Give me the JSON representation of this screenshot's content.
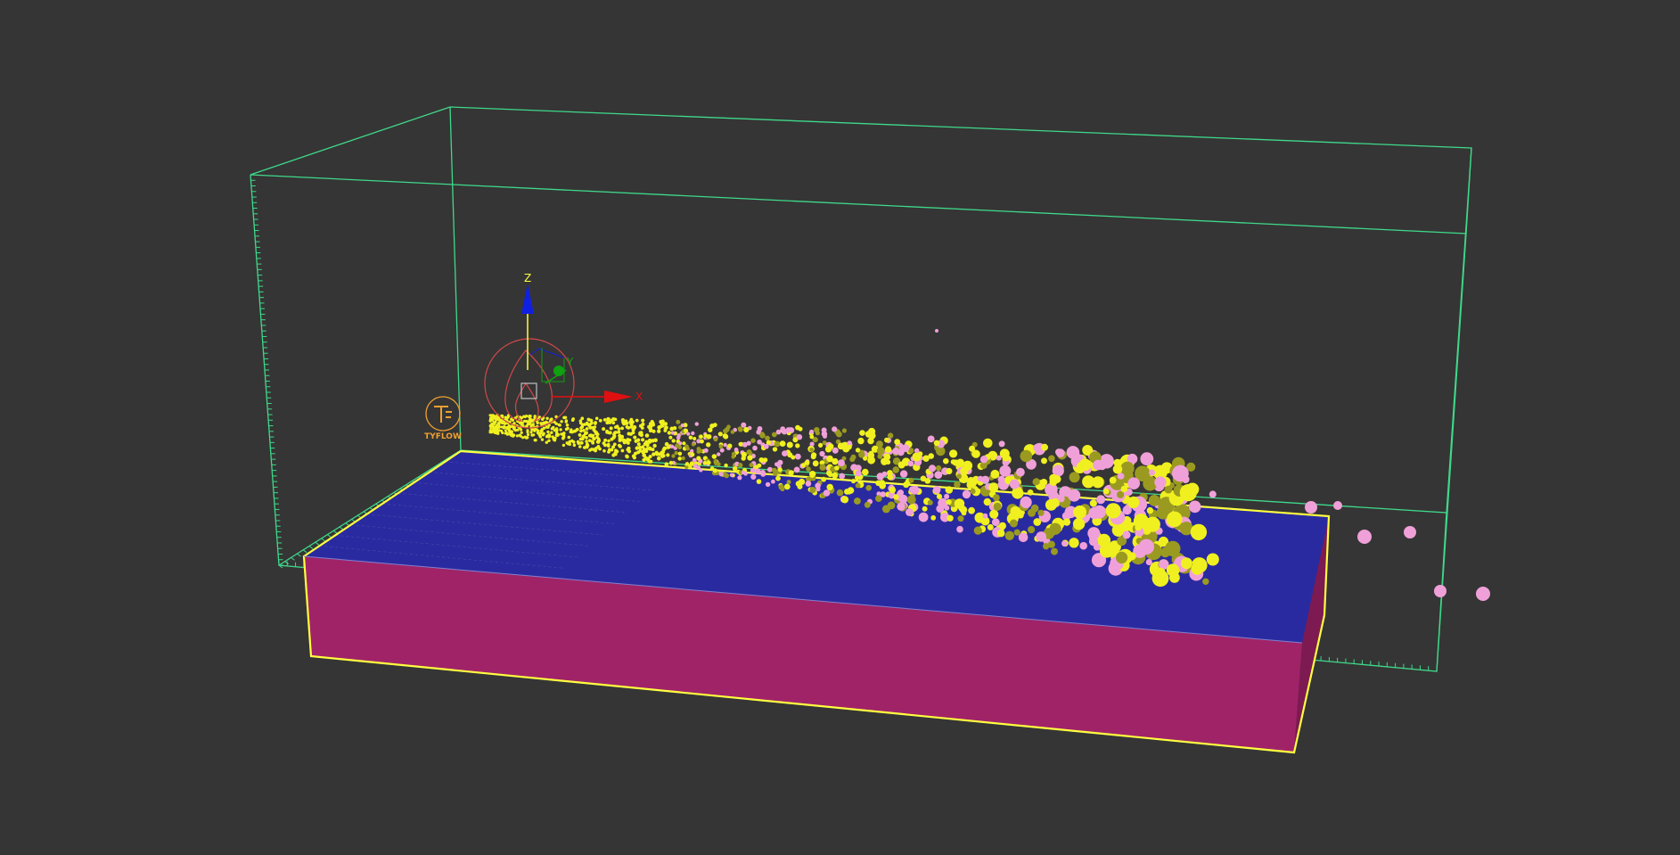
{
  "viewport": {
    "background": "#353535",
    "colors": {
      "bounding_box": "#3fd98a",
      "water_surface": "#2a2aa0",
      "tank_side": "#a02368",
      "selection": "#ffff40",
      "particle_yellow": "#f0f020",
      "particle_olive": "#9a9a20",
      "particle_pink": "#f0a0d8",
      "emitter": "#d04848",
      "logo": "#f0a030"
    }
  },
  "gizmo": {
    "z_label": "Z",
    "x_label": "X",
    "y_label": "Y",
    "z_color": "#1020e0",
    "x_color": "#e01010",
    "y_color": "#10a010"
  },
  "logo": {
    "text": "TYFLOW",
    "icon": "tyflow-logo-icon"
  },
  "emitter": {
    "icon": "fire-source-icon"
  }
}
